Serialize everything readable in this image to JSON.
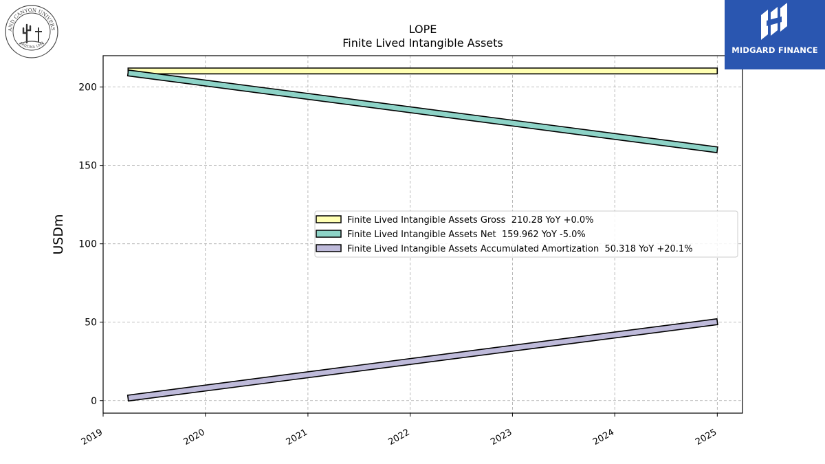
{
  "brand": {
    "name": "MIDGARD FINANCE",
    "color": "#2a56b0",
    "icon": "midgard-logo-icon"
  },
  "seal": {
    "icon": "university-seal-icon",
    "text": "GRAND CANYON UNIVERSITY",
    "subtext": "ARIZONA 1949"
  },
  "chart_data": {
    "type": "line",
    "title": "LOPE",
    "subtitle": "Finite Lived Intangible Assets",
    "xlabel": "",
    "ylabel": "USDm",
    "xlim": [
      "2019-01-01",
      "2025-04-01"
    ],
    "ylim": [
      -8,
      220
    ],
    "x_ticks": [
      "2019",
      "2020",
      "2021",
      "2022",
      "2023",
      "2024",
      "2025"
    ],
    "y_ticks": [
      0,
      50,
      100,
      150,
      200
    ],
    "grid": true,
    "legend_position": "center-right",
    "series": [
      {
        "name": "Finite Lived Intangible Assets Gross  210.28 YoY +0.0%",
        "color": "#ffffb3",
        "points": [
          [
            "2019-03-31",
            210.28
          ],
          [
            "2025-01-01",
            210.28
          ]
        ]
      },
      {
        "name": "Finite Lived Intangible Assets Net  159.962 YoY -5.0%",
        "color": "#8dd3c7",
        "points": [
          [
            "2019-03-31",
            209.0
          ],
          [
            "2025-01-01",
            159.962
          ]
        ]
      },
      {
        "name": "Finite Lived Intangible Assets Accumulated Amortization  50.318 YoY +20.1%",
        "color": "#bebada",
        "points": [
          [
            "2019-03-31",
            1.6
          ],
          [
            "2025-01-01",
            50.318
          ]
        ]
      }
    ]
  }
}
